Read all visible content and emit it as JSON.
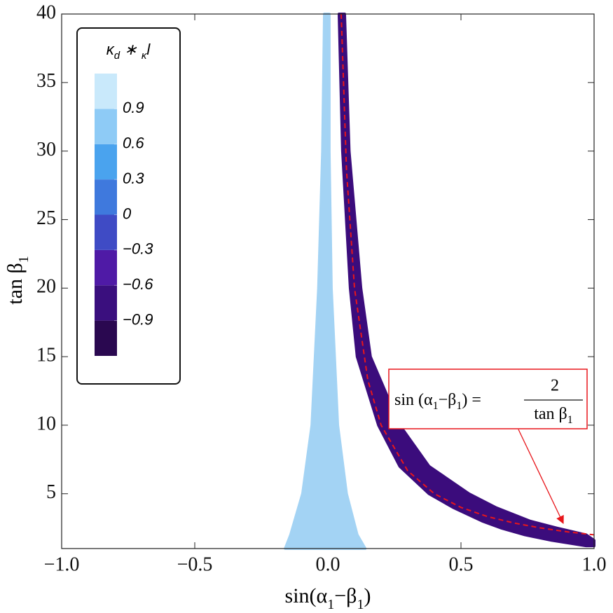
{
  "chart_data": {
    "type": "region",
    "xlabel": [
      "sin(α",
      "1",
      "−β",
      "1",
      ")"
    ],
    "ylabel": [
      "tan β",
      "1"
    ],
    "xlim": [
      -1,
      1
    ],
    "ylim": [
      1,
      40
    ],
    "xticks": [
      {
        "value": -1,
        "label": "−1.0"
      },
      {
        "value": -0.5,
        "label": "−0.5"
      },
      {
        "value": 0,
        "label": "0.0"
      },
      0.5,
      {
        "value": 1,
        "label": "1.0"
      }
    ],
    "yticks": [
      5,
      10,
      15,
      20,
      25,
      30,
      35,
      40
    ],
    "regions": [
      {
        "color": "#a3d3f4",
        "y": [
          40,
          30,
          20,
          10,
          5,
          2,
          1
        ],
        "x_low": [
          -0.013,
          -0.02,
          -0.035,
          -0.06,
          -0.095,
          -0.14,
          -0.16
        ],
        "x_high": [
          0.005,
          0.005,
          0.013,
          0.037,
          0.07,
          0.11,
          0.14
        ]
      },
      {
        "color": "#3b0c7c",
        "y": [
          40,
          30,
          20,
          15,
          10,
          7,
          5,
          4,
          3,
          2.5,
          2,
          1.6,
          1.2
        ],
        "x_low": [
          0.042,
          0.055,
          0.084,
          0.11,
          0.19,
          0.27,
          0.38,
          0.47,
          0.58,
          0.65,
          0.74,
          0.84,
          0.97
        ],
        "x_high": [
          0.063,
          0.08,
          0.124,
          0.16,
          0.27,
          0.38,
          0.53,
          0.63,
          0.76,
          0.86,
          0.97,
          1.0,
          1.0
        ]
      }
    ],
    "curve": {
      "color": "#e8161b",
      "x": [
        0.05,
        0.07,
        0.1,
        0.15,
        0.2,
        0.3,
        0.4,
        0.5,
        0.6,
        0.7,
        0.8,
        0.9,
        1.0
      ],
      "y": [
        40,
        28.6,
        20,
        13.3,
        10,
        6.67,
        5,
        4,
        3.33,
        2.86,
        2.5,
        2.22,
        2
      ]
    },
    "annotation": {
      "lhs": [
        "sin (α",
        "1",
        "−β",
        "1",
        ") ="
      ],
      "numerator": "2",
      "denominator": [
        "tan β",
        "1"
      ]
    },
    "colorbar": {
      "title": [
        "κ",
        "d",
        " ∗ ",
        "κ",
        "l"
      ],
      "lim": [
        -1.2,
        1.2
      ],
      "colors": [
        "#2a0850",
        "#3a0f7e",
        "#4f1aa6",
        "#3f4bc5",
        "#3f79dd",
        "#4aa3ee",
        "#8ecbf6",
        "#c9e9fb"
      ],
      "ticks": [
        {
          "value": 0.9,
          "label": "0.9"
        },
        {
          "value": 0.6,
          "label": "0.6"
        },
        {
          "value": 0.3,
          "label": "0.3"
        },
        0,
        {
          "value": -0.3,
          "label": "−0.3"
        },
        {
          "value": -0.6,
          "label": "−0.6"
        },
        {
          "value": -0.9,
          "label": "−0.9"
        }
      ]
    }
  }
}
